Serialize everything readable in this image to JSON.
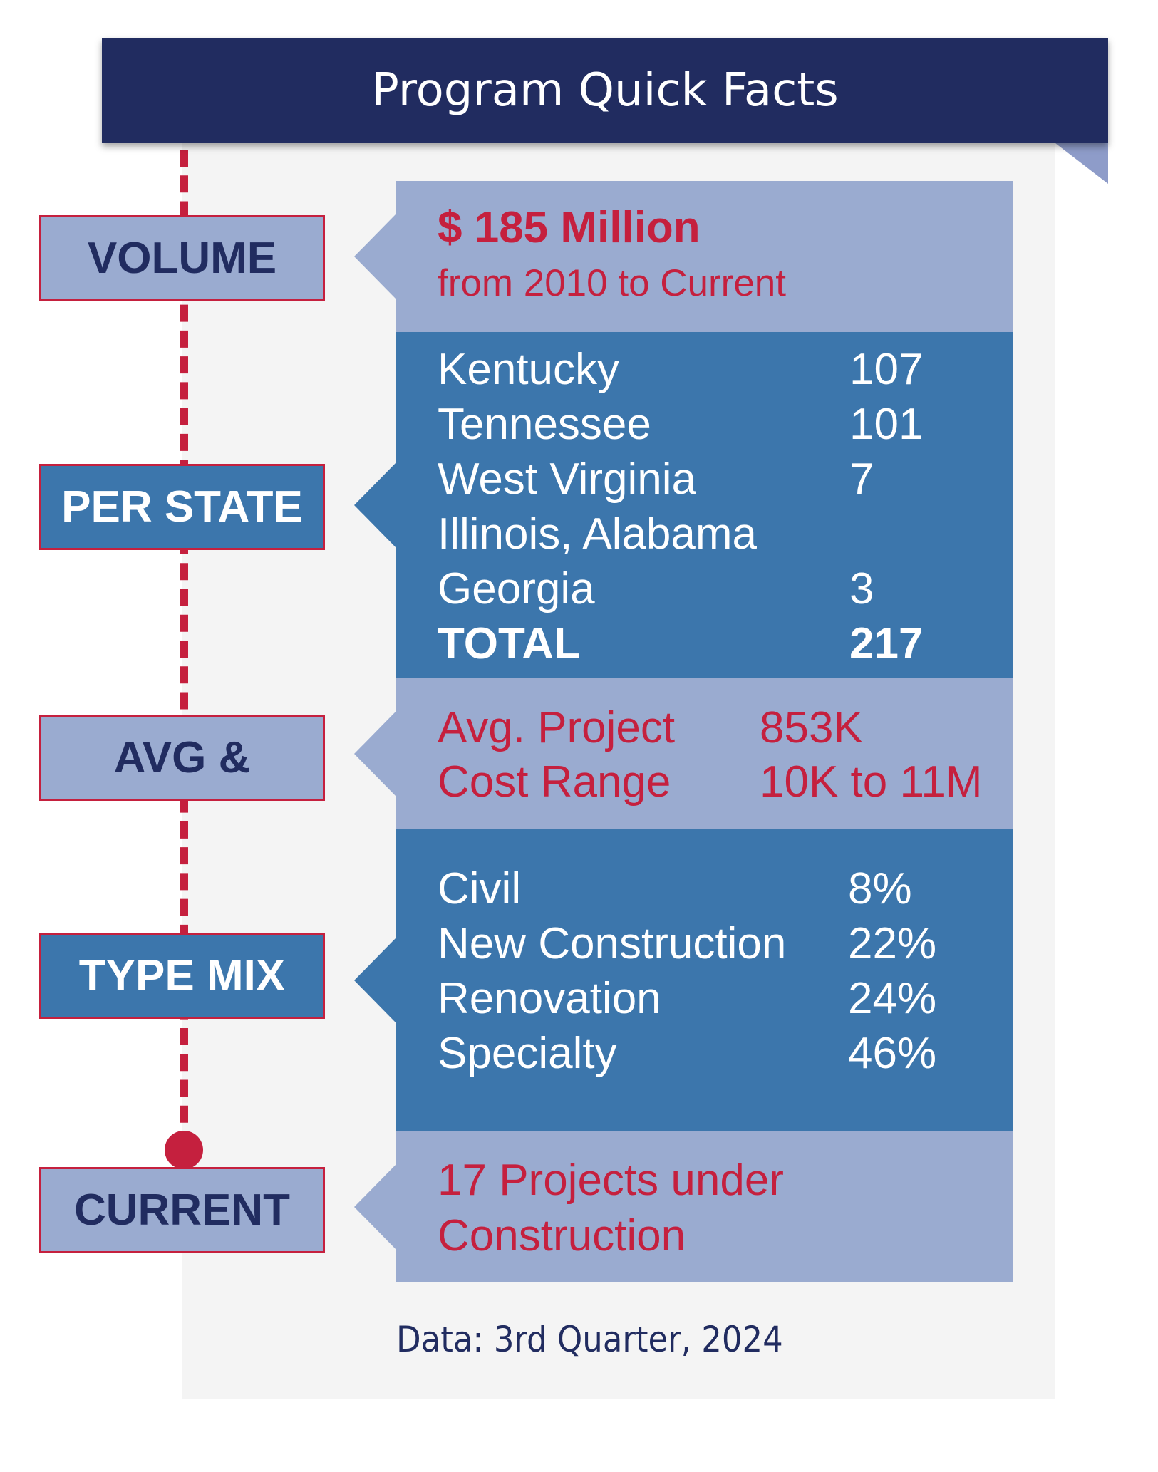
{
  "title": "Program Quick Facts",
  "labels": {
    "volume": "VOLUME",
    "per_state": "PER STATE",
    "avg": "AVG &",
    "type_mix": "TYPE MIX",
    "current": "CURRENT"
  },
  "volume": {
    "amount": "$ 185 Million",
    "period": "from 2010 to Current"
  },
  "per_state": {
    "rows": [
      {
        "state": "Kentucky",
        "count": "107"
      },
      {
        "state": "Tennessee",
        "count": "101"
      },
      {
        "state": "West Virginia",
        "count": "7"
      },
      {
        "state": "Illinois, Alabama",
        "count": ""
      },
      {
        "state": "Georgia",
        "count": "3"
      }
    ],
    "total_label": "TOTAL",
    "total_value": "217"
  },
  "avg": {
    "rows": [
      {
        "label": "Avg. Project",
        "value": "853K"
      },
      {
        "label": "Cost Range",
        "value": "10K to 11M"
      }
    ]
  },
  "type_mix": {
    "rows": [
      {
        "type": "Civil",
        "percent": "8%"
      },
      {
        "type": "New Construction",
        "percent": "22%"
      },
      {
        "type": "Renovation",
        "percent": "24%"
      },
      {
        "type": "Specialty",
        "percent": "46%"
      }
    ]
  },
  "current": {
    "line1": "17 Projects under",
    "line2": "Construction"
  },
  "footer": "Data: 3rd Quarter, 2024",
  "colors": {
    "navy": "#212c60",
    "red": "#c5203e",
    "light_blue": "#9aabd0",
    "mid_blue": "#3c76ac",
    "panel_gray": "#f4f4f4"
  }
}
